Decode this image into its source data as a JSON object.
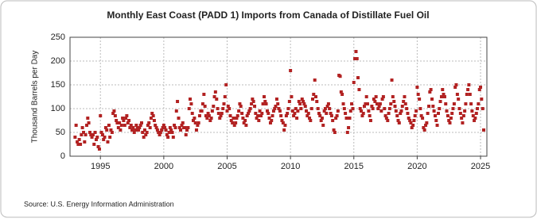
{
  "chart_data": {
    "type": "scatter",
    "title": "Monthly East Coast (PADD 1) Imports from Canada of Distillate Fuel Oil",
    "y_label": "Thousand Barrels per Day",
    "source": "Source: U.S. Energy Information Administration",
    "color": "#b22222",
    "xlim": [
      1992.6,
      2025.5
    ],
    "xticks": [
      1995,
      2000,
      2005,
      2010,
      2015,
      2020,
      2025
    ],
    "ylim": [
      0,
      250
    ],
    "yticks": [
      0,
      50,
      100,
      150,
      200,
      250
    ],
    "grid": true,
    "x": [
      1993,
      1993.08,
      1993.17,
      1993.25,
      1993.33,
      1993.42,
      1993.5,
      1993.58,
      1993.67,
      1993.75,
      1993.83,
      1993.92,
      1994,
      1994.08,
      1994.17,
      1994.25,
      1994.33,
      1994.42,
      1994.5,
      1994.58,
      1994.67,
      1994.75,
      1994.83,
      1994.92,
      1995,
      1995.08,
      1995.17,
      1995.25,
      1995.33,
      1995.42,
      1995.5,
      1995.58,
      1995.67,
      1995.75,
      1995.83,
      1995.92,
      1996,
      1996.08,
      1996.17,
      1996.25,
      1996.33,
      1996.42,
      1996.5,
      1996.58,
      1996.67,
      1996.75,
      1996.83,
      1996.92,
      1997,
      1997.08,
      1997.17,
      1997.25,
      1997.33,
      1997.42,
      1997.5,
      1997.58,
      1997.67,
      1997.75,
      1997.83,
      1997.92,
      1998,
      1998.08,
      1998.17,
      1998.25,
      1998.33,
      1998.42,
      1998.5,
      1998.58,
      1998.67,
      1998.75,
      1998.83,
      1998.92,
      1999,
      1999.08,
      1999.17,
      1999.25,
      1999.33,
      1999.42,
      1999.5,
      1999.58,
      1999.67,
      1999.75,
      1999.83,
      1999.92,
      2000,
      2000.08,
      2000.17,
      2000.25,
      2000.33,
      2000.42,
      2000.5,
      2000.58,
      2000.67,
      2000.75,
      2000.83,
      2000.92,
      2001,
      2001.08,
      2001.17,
      2001.25,
      2001.33,
      2001.42,
      2001.5,
      2001.58,
      2001.67,
      2001.75,
      2001.83,
      2001.92,
      2002,
      2002.08,
      2002.17,
      2002.25,
      2002.33,
      2002.42,
      2002.5,
      2002.58,
      2002.67,
      2002.75,
      2002.83,
      2002.92,
      2003,
      2003.08,
      2003.17,
      2003.25,
      2003.33,
      2003.42,
      2003.5,
      2003.58,
      2003.67,
      2003.75,
      2003.83,
      2003.92,
      2004,
      2004.08,
      2004.17,
      2004.25,
      2004.33,
      2004.42,
      2004.5,
      2004.58,
      2004.67,
      2004.75,
      2004.83,
      2004.92,
      2005,
      2005.08,
      2005.17,
      2005.25,
      2005.33,
      2005.42,
      2005.5,
      2005.58,
      2005.67,
      2005.75,
      2005.83,
      2005.92,
      2006,
      2006.08,
      2006.17,
      2006.25,
      2006.33,
      2006.42,
      2006.5,
      2006.58,
      2006.67,
      2006.75,
      2006.83,
      2006.92,
      2007,
      2007.08,
      2007.17,
      2007.25,
      2007.33,
      2007.42,
      2007.5,
      2007.58,
      2007.67,
      2007.75,
      2007.83,
      2007.92,
      2008,
      2008.08,
      2008.17,
      2008.25,
      2008.33,
      2008.42,
      2008.5,
      2008.58,
      2008.67,
      2008.75,
      2008.83,
      2008.92,
      2009,
      2009.08,
      2009.17,
      2009.25,
      2009.33,
      2009.42,
      2009.5,
      2009.58,
      2009.67,
      2009.75,
      2009.83,
      2009.92,
      2010,
      2010.08,
      2010.17,
      2010.25,
      2010.33,
      2010.42,
      2010.5,
      2010.58,
      2010.67,
      2010.75,
      2010.83,
      2010.92,
      2011,
      2011.08,
      2011.17,
      2011.25,
      2011.33,
      2011.42,
      2011.5,
      2011.58,
      2011.67,
      2011.75,
      2011.83,
      2011.92,
      2012,
      2012.08,
      2012.17,
      2012.25,
      2012.33,
      2012.42,
      2012.5,
      2012.58,
      2012.67,
      2012.75,
      2012.83,
      2012.92,
      2013,
      2013.08,
      2013.17,
      2013.25,
      2013.33,
      2013.42,
      2013.5,
      2013.58,
      2013.67,
      2013.75,
      2013.83,
      2013.92,
      2014,
      2014.08,
      2014.17,
      2014.25,
      2014.33,
      2014.42,
      2014.5,
      2014.58,
      2014.67,
      2014.75,
      2014.83,
      2014.92,
      2015,
      2015.08,
      2015.17,
      2015.25,
      2015.33,
      2015.42,
      2015.5,
      2015.58,
      2015.67,
      2015.75,
      2015.83,
      2015.92,
      2016,
      2016.08,
      2016.17,
      2016.25,
      2016.33,
      2016.42,
      2016.5,
      2016.58,
      2016.67,
      2016.75,
      2016.83,
      2016.92,
      2017,
      2017.08,
      2017.17,
      2017.25,
      2017.33,
      2017.42,
      2017.5,
      2017.58,
      2017.67,
      2017.75,
      2017.83,
      2017.92,
      2018,
      2018.08,
      2018.17,
      2018.25,
      2018.33,
      2018.42,
      2018.5,
      2018.58,
      2018.67,
      2018.75,
      2018.83,
      2018.92,
      2019,
      2019.08,
      2019.17,
      2019.25,
      2019.33,
      2019.42,
      2019.5,
      2019.58,
      2019.67,
      2019.75,
      2019.83,
      2019.92,
      2020,
      2020.08,
      2020.17,
      2020.25,
      2020.33,
      2020.42,
      2020.5,
      2020.58,
      2020.67,
      2020.75,
      2020.83,
      2020.92,
      2021,
      2021.08,
      2021.17,
      2021.25,
      2021.33,
      2021.42,
      2021.5,
      2021.58,
      2021.67,
      2021.75,
      2021.83,
      2021.92,
      2022,
      2022.08,
      2022.17,
      2022.25,
      2022.33,
      2022.42,
      2022.5,
      2022.58,
      2022.67,
      2022.75,
      2022.83,
      2022.92,
      2023,
      2023.08,
      2023.17,
      2023.25,
      2023.33,
      2023.42,
      2023.5,
      2023.58,
      2023.67,
      2023.75,
      2023.83,
      2023.92,
      2024,
      2024.08,
      2024.17,
      2024.25,
      2024.33,
      2024.42,
      2024.5,
      2024.58,
      2024.67,
      2024.75,
      2024.83,
      2024.92,
      2025,
      2025.08,
      2025.17,
      2025.25
    ],
    "values": [
      40,
      65,
      30,
      25,
      35,
      25,
      45,
      60,
      50,
      30,
      45,
      65,
      80,
      70,
      50,
      45,
      40,
      45,
      25,
      50,
      35,
      40,
      20,
      15,
      85,
      50,
      45,
      35,
      40,
      60,
      55,
      30,
      65,
      40,
      55,
      50,
      90,
      95,
      85,
      75,
      70,
      60,
      70,
      55,
      65,
      80,
      75,
      65,
      80,
      85,
      70,
      75,
      60,
      65,
      55,
      60,
      50,
      55,
      65,
      60,
      55,
      60,
      65,
      70,
      50,
      40,
      55,
      45,
      50,
      65,
      70,
      60,
      80,
      90,
      85,
      75,
      65,
      60,
      55,
      50,
      45,
      50,
      55,
      60,
      65,
      60,
      55,
      45,
      40,
      50,
      60,
      55,
      50,
      40,
      65,
      60,
      95,
      115,
      80,
      60,
      55,
      65,
      70,
      60,
      60,
      45,
      55,
      60,
      100,
      120,
      110,
      90,
      75,
      80,
      70,
      55,
      65,
      70,
      85,
      95,
      95,
      110,
      130,
      105,
      85,
      80,
      90,
      85,
      75,
      80,
      95,
      105,
      125,
      135,
      120,
      100,
      90,
      80,
      85,
      90,
      100,
      110,
      125,
      150,
      95,
      105,
      100,
      85,
      75,
      70,
      80,
      65,
      70,
      80,
      85,
      95,
      110,
      105,
      90,
      80,
      70,
      75,
      65,
      85,
      90,
      95,
      100,
      110,
      120,
      115,
      105,
      90,
      80,
      85,
      75,
      95,
      85,
      90,
      110,
      125,
      115,
      110,
      95,
      90,
      80,
      70,
      75,
      85,
      95,
      100,
      105,
      120,
      110,
      100,
      95,
      85,
      75,
      70,
      55,
      65,
      85,
      90,
      100,
      115,
      180,
      125,
      95,
      85,
      90,
      100,
      80,
      95,
      115,
      110,
      100,
      120,
      115,
      110,
      105,
      95,
      85,
      90,
      80,
      75,
      100,
      120,
      130,
      160,
      125,
      115,
      100,
      90,
      85,
      75,
      80,
      65,
      95,
      100,
      90,
      105,
      110,
      100,
      90,
      85,
      75,
      55,
      50,
      80,
      85,
      95,
      170,
      168,
      135,
      130,
      110,
      100,
      90,
      80,
      50,
      60,
      80,
      95,
      110,
      100,
      155,
      205,
      220,
      205,
      165,
      140,
      100,
      95,
      85,
      90,
      105,
      110,
      125,
      110,
      95,
      85,
      75,
      105,
      100,
      120,
      115,
      125,
      110,
      100,
      105,
      110,
      95,
      120,
      125,
      100,
      85,
      80,
      75,
      90,
      100,
      110,
      160,
      125,
      115,
      105,
      95,
      85,
      75,
      70,
      90,
      95,
      105,
      115,
      125,
      110,
      100,
      90,
      80,
      75,
      70,
      60,
      65,
      75,
      85,
      95,
      145,
      130,
      120,
      100,
      85,
      80,
      60,
      55,
      65,
      70,
      90,
      105,
      135,
      140,
      120,
      105,
      95,
      85,
      75,
      65,
      90,
      100,
      115,
      125,
      140,
      130,
      125,
      110,
      95,
      85,
      75,
      70,
      80,
      90,
      100,
      110,
      145,
      150,
      130,
      120,
      100,
      90,
      80,
      70,
      85,
      95,
      110,
      130,
      140,
      150,
      130,
      110,
      95,
      85,
      75,
      80,
      90,
      100,
      110,
      140,
      145,
      120,
      100,
      55
    ]
  }
}
